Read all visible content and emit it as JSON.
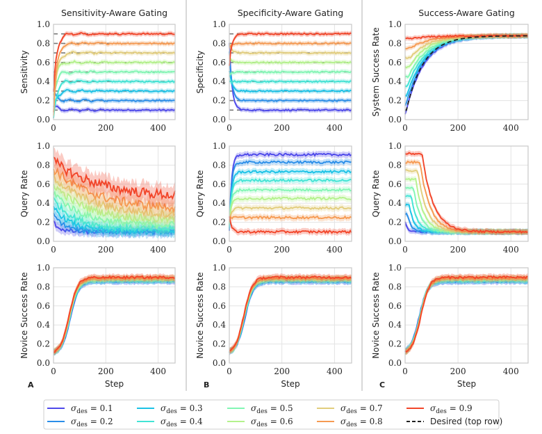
{
  "chart_data": {
    "type": "line",
    "x_label": "Step",
    "x_range": [
      0,
      465
    ],
    "x_ticks": [
      0,
      200,
      400
    ],
    "panel_labels": [
      "A",
      "B",
      "C"
    ],
    "column_titles": [
      "Sensitivity-Aware Gating",
      "Specificity-Aware Gating",
      "Success-Aware Gating"
    ],
    "row_ylabels": [
      [
        "Sensitivity",
        "Specificity",
        "System Success Rate"
      ],
      [
        "Query Rate",
        "Query Rate",
        "Query Rate"
      ],
      [
        "Novice Success Rate",
        "Novice Success Rate",
        "Novice Success Rate"
      ]
    ],
    "y_range": [
      0.0,
      1.0
    ],
    "y_ticks": [
      "0.0",
      "0.2",
      "0.4",
      "0.6",
      "0.8",
      "1.0"
    ],
    "series": [
      {
        "name": "σ_des = 0.1",
        "sigma": 0.1,
        "color": "#4e49ea"
      },
      {
        "name": "σ_des = 0.2",
        "sigma": 0.2,
        "color": "#2a8ee8"
      },
      {
        "name": "σ_des = 0.3",
        "sigma": 0.3,
        "color": "#1bc2e6"
      },
      {
        "name": "σ_des = 0.4",
        "sigma": 0.4,
        "color": "#42e4d5"
      },
      {
        "name": "σ_des = 0.5",
        "sigma": 0.5,
        "color": "#82f6b4"
      },
      {
        "name": "σ_des = 0.6",
        "sigma": 0.6,
        "color": "#b4f28c"
      },
      {
        "name": "σ_des = 0.7",
        "sigma": 0.7,
        "color": "#e2cd7c"
      },
      {
        "name": "σ_des = 0.8",
        "sigma": 0.8,
        "color": "#f69a52"
      },
      {
        "name": "σ_des = 0.9",
        "sigma": 0.9,
        "color": "#f2462a"
      }
    ],
    "desired_legend": "Desired (top row)",
    "panels": {
      "sens_final": [
        0.1,
        0.2,
        0.3,
        0.4,
        0.5,
        0.6,
        0.7,
        0.8,
        0.9
      ],
      "spec_final": [
        0.1,
        0.2,
        0.3,
        0.4,
        0.5,
        0.6,
        0.7,
        0.8,
        0.9
      ],
      "system_success_final": 0.88,
      "query_rate_sens_final": [
        0.1,
        0.1,
        0.11,
        0.13,
        0.17,
        0.22,
        0.27,
        0.33,
        0.45
      ],
      "query_rate_spec_final": [
        0.91,
        0.83,
        0.73,
        0.64,
        0.54,
        0.45,
        0.35,
        0.25,
        0.1
      ],
      "query_rate_succ_final": [
        0.1,
        0.1,
        0.1,
        0.1,
        0.1,
        0.1,
        0.1,
        0.1,
        0.1
      ],
      "novice_success_final": [
        0.86,
        0.86,
        0.87,
        0.87,
        0.88,
        0.88,
        0.89,
        0.89,
        0.9
      ]
    }
  },
  "legend": {
    "items": [
      "σdes = 0.1",
      "σdes = 0.2",
      "σdes = 0.3",
      "σdes = 0.4",
      "σdes = 0.5",
      "σdes = 0.6",
      "σdes = 0.7",
      "σdes = 0.8",
      "σdes = 0.9",
      "Desired (top row)"
    ]
  }
}
